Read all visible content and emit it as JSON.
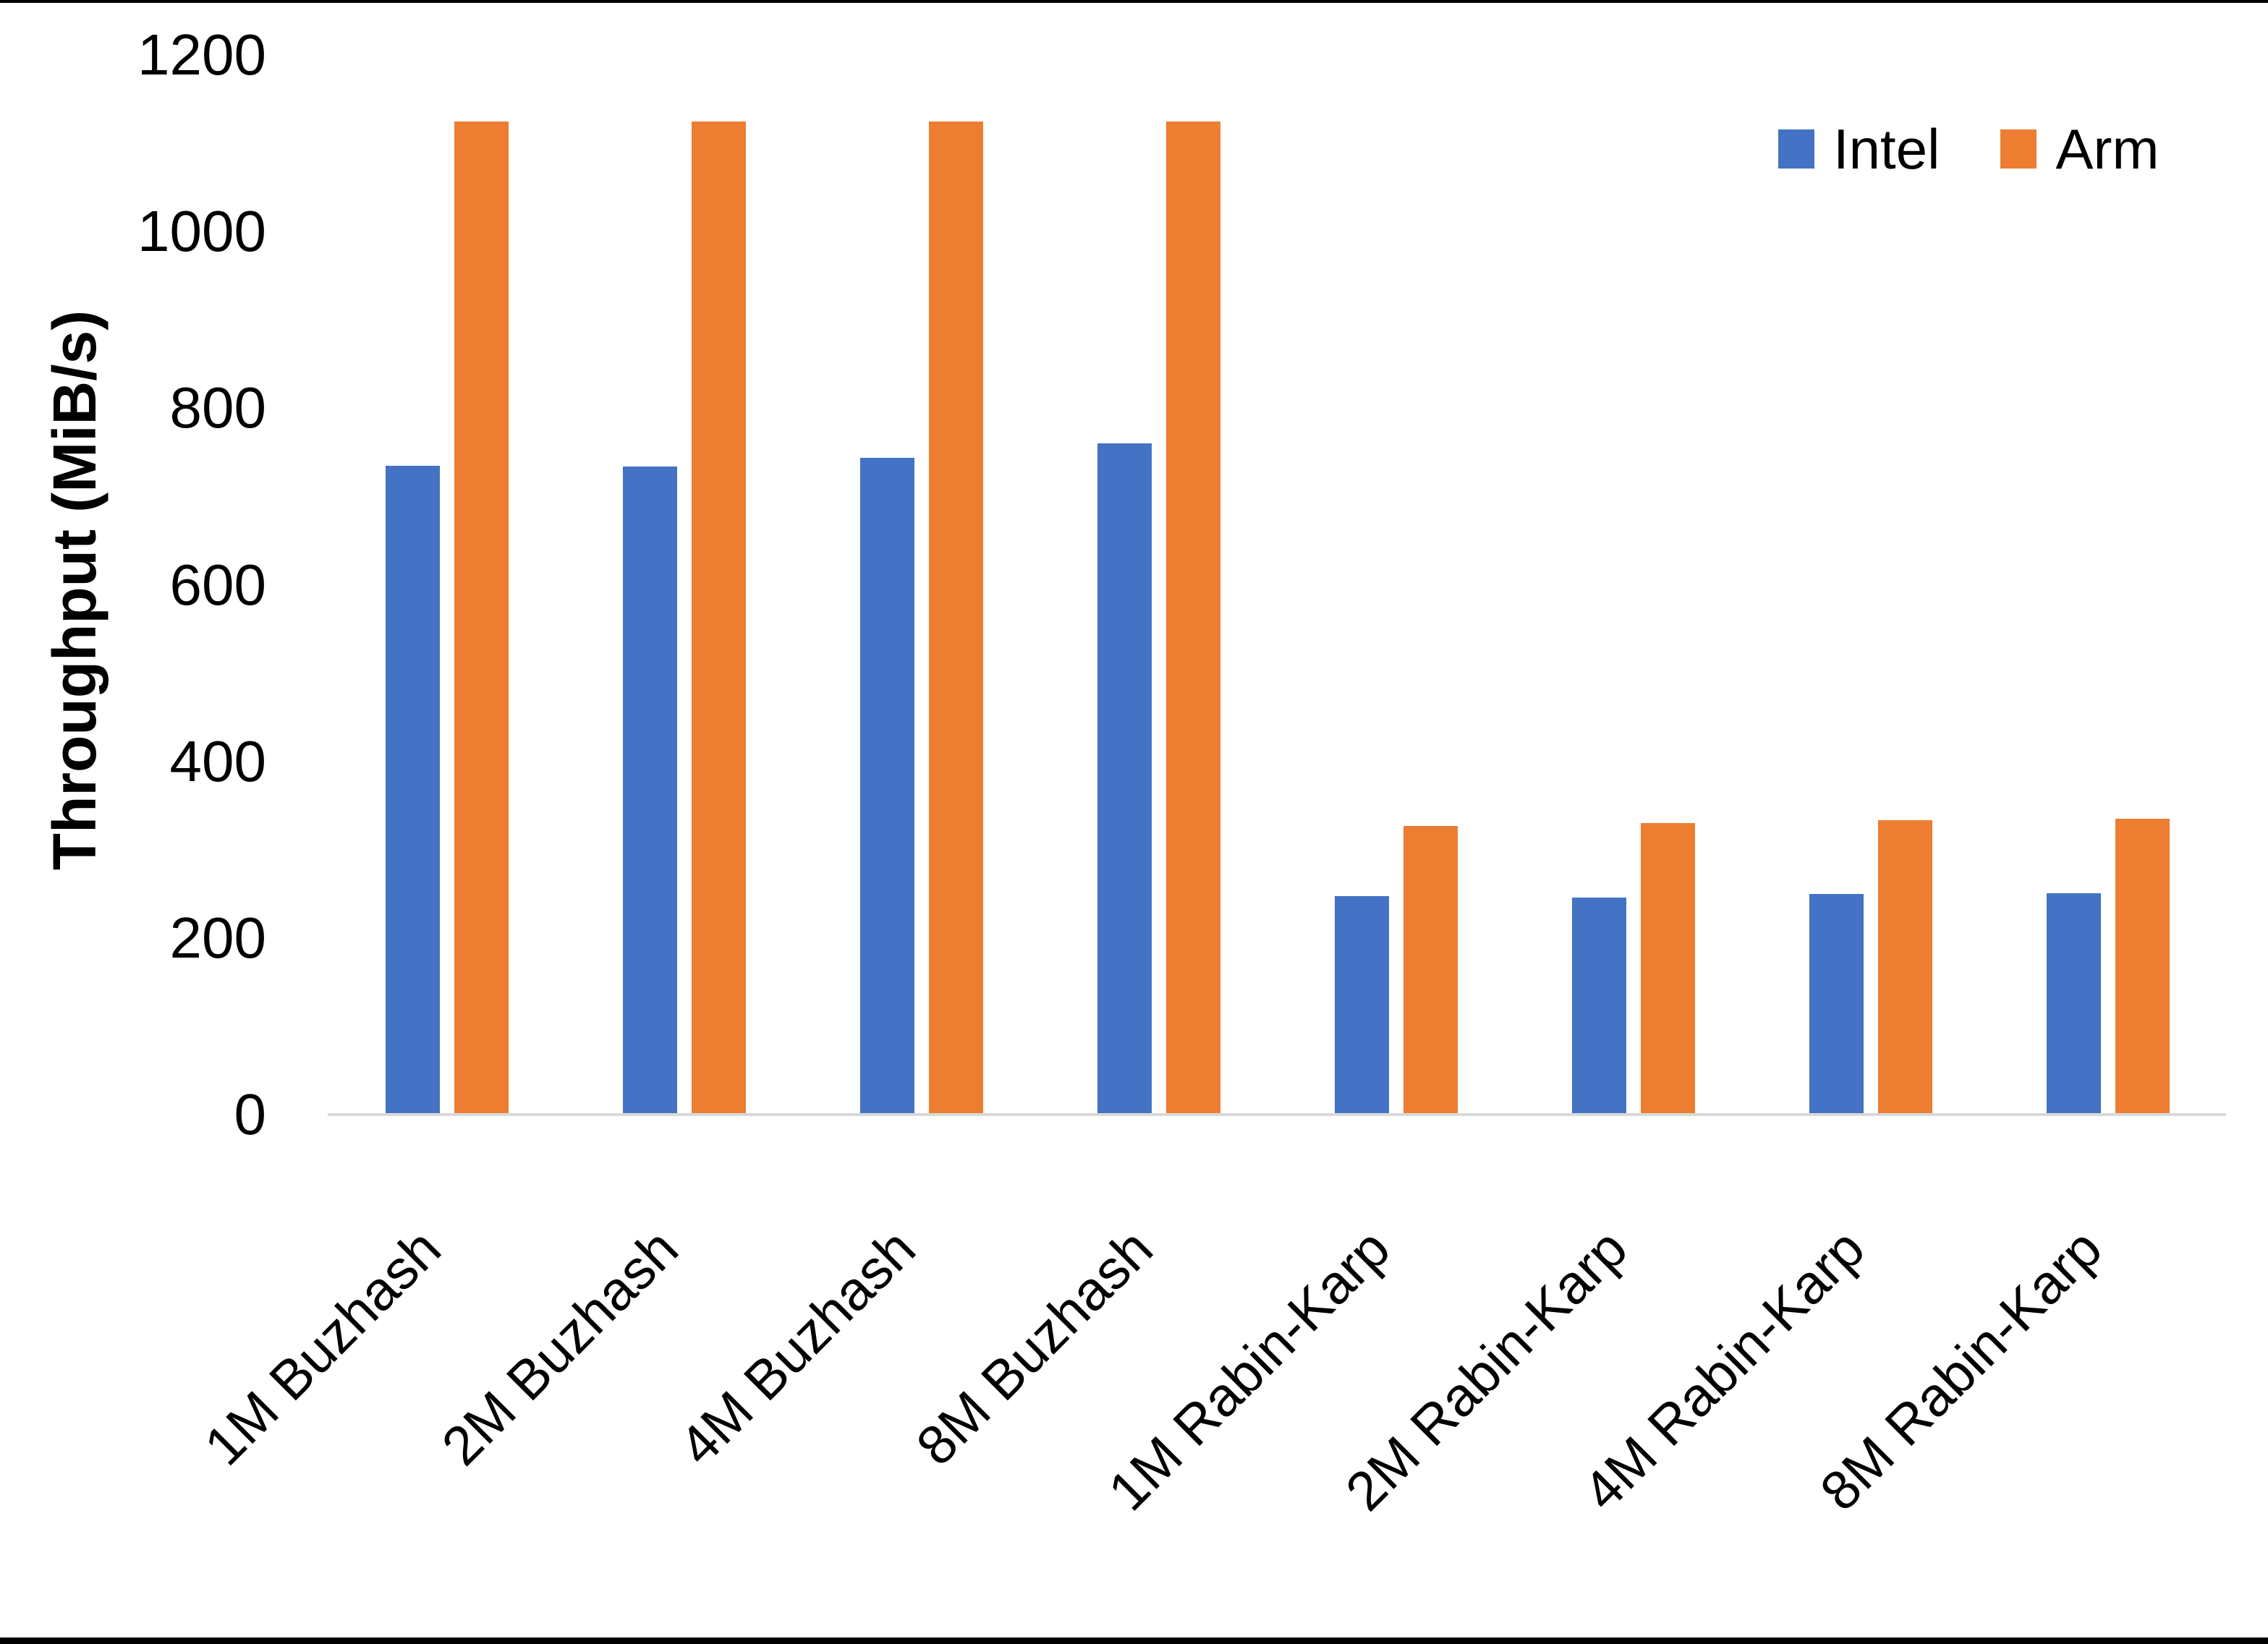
{
  "chart_data": {
    "type": "bar",
    "title": "",
    "xlabel": "",
    "ylabel": "Throughput (MiB/s)",
    "ylim": [
      0,
      1200
    ],
    "yticks": [
      0,
      200,
      400,
      600,
      800,
      1000,
      1200
    ],
    "grid": false,
    "legend_position": "top-right",
    "categories": [
      "1M Buzhash",
      "2M Buzhash",
      "4M Buzhash",
      "8M Buzhash",
      "1M Rabin-Karp",
      "2M Rabin-Karp",
      "4M Rabin-Karp",
      "8M Rabin-Karp"
    ],
    "series": [
      {
        "name": "Intel",
        "color": "#4472C4",
        "values": [
          735,
          734,
          744,
          760,
          247,
          246,
          250,
          251
        ]
      },
      {
        "name": "Arm",
        "color": "#ED7D31",
        "values": [
          1125,
          1125,
          1125,
          1125,
          327,
          330,
          333,
          335
        ]
      }
    ],
    "colors": {
      "intel": "#4472C4",
      "arm": "#ED7D31",
      "axis_line": "#D9D9D9",
      "text": "#000000",
      "background": "#FFFFFF",
      "page_edge": "#000000"
    }
  }
}
